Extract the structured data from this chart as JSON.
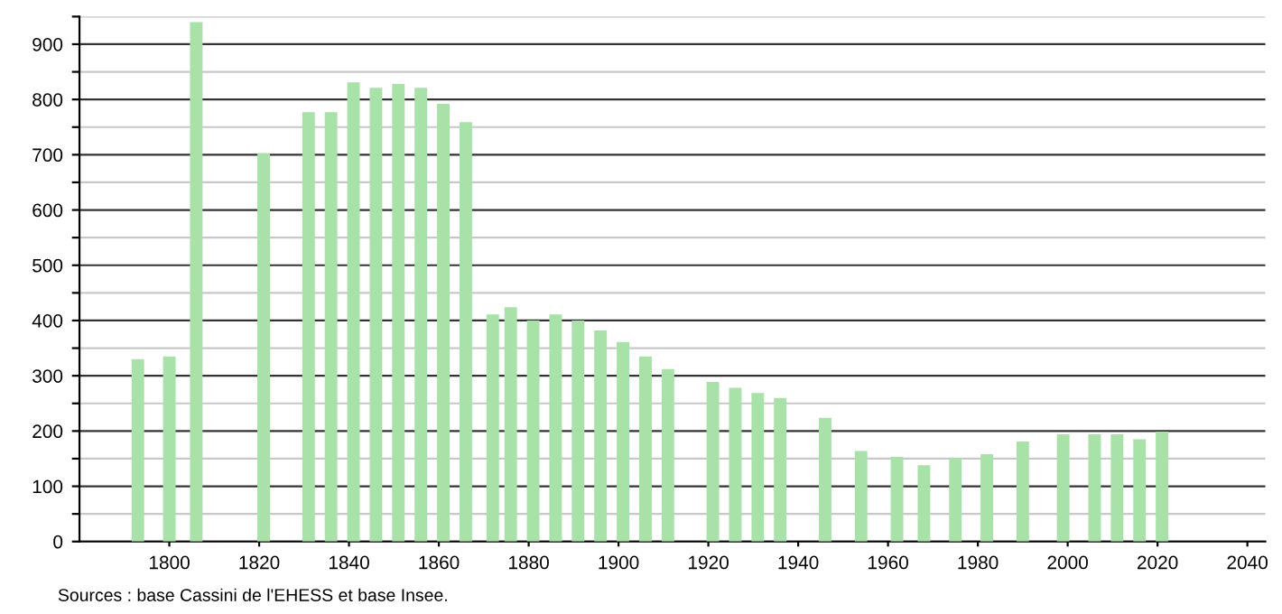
{
  "chart_data": {
    "type": "bar",
    "x": [
      1793,
      1800,
      1806,
      1821,
      1831,
      1836,
      1841,
      1846,
      1851,
      1856,
      1861,
      1866,
      1872,
      1876,
      1881,
      1886,
      1891,
      1896,
      1901,
      1906,
      1911,
      1921,
      1926,
      1931,
      1936,
      1946,
      1954,
      1962,
      1968,
      1975,
      1982,
      1990,
      1999,
      2006,
      2011,
      2016,
      2021
    ],
    "values": [
      330,
      335,
      940,
      703,
      777,
      777,
      831,
      821,
      828,
      821,
      792,
      759,
      411,
      424,
      400,
      411,
      400,
      382,
      361,
      335,
      312,
      289,
      278,
      269,
      260,
      224,
      164,
      153,
      138,
      151,
      158,
      181,
      194,
      194,
      194,
      185,
      199
    ],
    "color": "#a8e2a8",
    "xlim": [
      1780,
      2044
    ],
    "xticks": [
      1800,
      1820,
      1840,
      1860,
      1880,
      1900,
      1920,
      1940,
      1960,
      1980,
      2000,
      2020,
      2040
    ],
    "ylim": [
      0,
      950
    ],
    "yticks": [
      0,
      {
        "value": 50,
        "label": null
      },
      100,
      {
        "value": 150,
        "label": null
      },
      200,
      {
        "value": 250,
        "label": null
      },
      300,
      {
        "value": 350,
        "label": null
      },
      400,
      {
        "value": 450,
        "label": null
      },
      500,
      {
        "value": 550,
        "label": null
      },
      600,
      {
        "value": 650,
        "label": null
      },
      700,
      {
        "value": 750,
        "label": null
      },
      800,
      {
        "value": 850,
        "label": null
      },
      900,
      {
        "value": 950,
        "label": null
      }
    ],
    "grid": "y",
    "annotations": [
      "Sources : base Cassini de l'EHESS et base Insee."
    ]
  }
}
